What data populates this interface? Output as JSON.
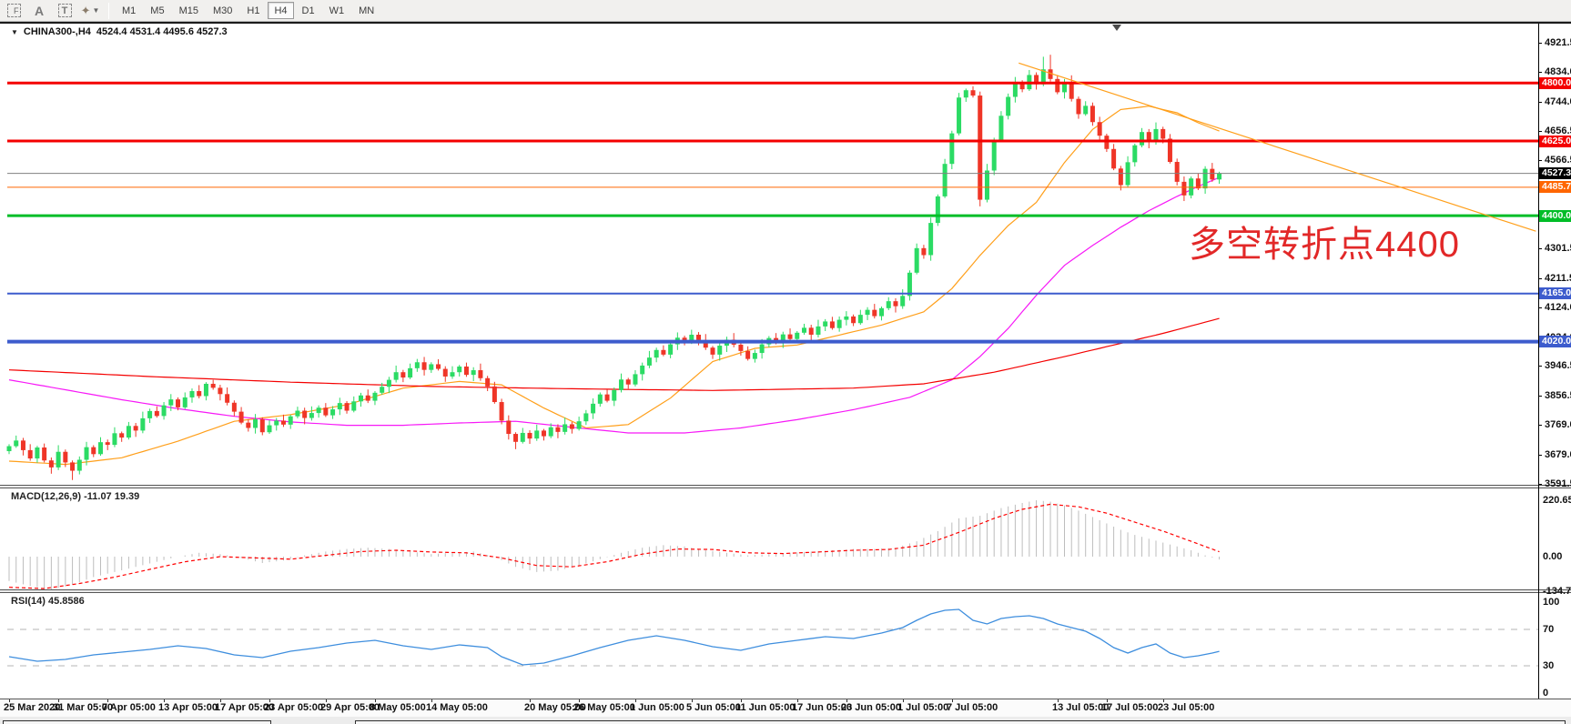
{
  "toolbar": {
    "tools": [
      {
        "name": "cursor-tool",
        "label": "F"
      },
      {
        "name": "text-a-tool",
        "label": "A"
      },
      {
        "name": "text-box-tool",
        "label": "T"
      },
      {
        "name": "shapes-tool",
        "label": "✦"
      }
    ],
    "timeframes": [
      "M1",
      "M5",
      "M15",
      "M30",
      "H1",
      "H4",
      "D1",
      "W1",
      "MN"
    ],
    "active_timeframe": "H4"
  },
  "window": {
    "title": "CHINA300-,H4",
    "ohlc_text": "4524.4 4531.4 4495.6 4527.3"
  },
  "annotation": {
    "text": "多空转折点4400",
    "color": "#e22828"
  },
  "price_axis": {
    "ticks": [
      4921.5,
      4834.0,
      4744.0,
      4656.5,
      4566.5,
      4477.0,
      4389.5,
      4301.5,
      4211.5,
      4124.0,
      4034.0,
      3946.5,
      3856.5,
      3769.0,
      3679.0,
      3591.5
    ],
    "badges": [
      {
        "text": "4800.0",
        "price": 4800.0,
        "color": "#f40000"
      },
      {
        "text": "4625.0",
        "price": 4625.0,
        "color": "#f40000"
      },
      {
        "text": "4527.3",
        "price": 4527.3,
        "color": "#000000"
      },
      {
        "text": "4485.7",
        "price": 4485.7,
        "color": "#ff6600"
      },
      {
        "text": "4400.0",
        "price": 4400.0,
        "color": "#00bd27"
      },
      {
        "text": "4165.0",
        "price": 4165.0,
        "color": "#3d5ccd"
      },
      {
        "text": "4020.0",
        "price": 4020.0,
        "color": "#3d5ccd"
      }
    ]
  },
  "chart_data": {
    "type": "candlestick",
    "symbol": "CHINA300-",
    "timeframe": "H4",
    "ohlc_display": {
      "open": 4524.4,
      "high": 4531.4,
      "low": 4495.6,
      "close": 4527.3
    },
    "price_axis_range": [
      3591.5,
      4921.5
    ],
    "open0": 3690,
    "closes": [
      3705,
      3722,
      3693,
      3668,
      3701,
      3662,
      3641,
      3688,
      3656,
      3631,
      3664,
      3702,
      3681,
      3717,
      3709,
      3744,
      3731,
      3766,
      3752,
      3789,
      3811,
      3796,
      3828,
      3846,
      3822,
      3852,
      3871,
      3856,
      3893,
      3881,
      3862,
      3836,
      3809,
      3776,
      3760,
      3786,
      3747,
      3768,
      3782,
      3770,
      3795,
      3812,
      3790,
      3805,
      3821,
      3798,
      3816,
      3835,
      3812,
      3840,
      3858,
      3842,
      3866,
      3884,
      3905,
      3928,
      3912,
      3940,
      3958,
      3935,
      3952,
      3938,
      3915,
      3928,
      3945,
      3920,
      3934,
      3910,
      3885,
      3838,
      3782,
      3742,
      3718,
      3745,
      3728,
      3752,
      3735,
      3762,
      3748,
      3771,
      3757,
      3780,
      3804,
      3833,
      3861,
      3842,
      3874,
      3906,
      3891,
      3922,
      3948,
      3972,
      3995,
      3981,
      4012,
      4032,
      4018,
      4041,
      4025,
      4002,
      3981,
      4008,
      4026,
      4011,
      3992,
      3968,
      3986,
      4012,
      4031,
      4017,
      4042,
      4028,
      4047,
      4062,
      4041,
      4066,
      4081,
      4061,
      4086,
      4096,
      4076,
      4101,
      4116,
      4097,
      4121,
      4142,
      4127,
      4158,
      4228,
      4302,
      4281,
      4378,
      4458,
      4556,
      4648,
      4756,
      4778,
      4762,
      4448,
      4536,
      4628,
      4701,
      4758,
      4802,
      4781,
      4824,
      4796,
      4841,
      4812,
      4772,
      4803,
      4752,
      4706,
      4731,
      4682,
      4641,
      4601,
      4542,
      4492,
      4561,
      4612,
      4652,
      4622,
      4661,
      4632,
      4562,
      4502,
      4461,
      4512,
      4482,
      4541,
      4509,
      4527.3
    ],
    "wick_up": [
      6,
      15,
      8,
      18,
      5,
      12,
      9,
      20,
      7,
      14,
      10,
      16
    ],
    "wick_dn": [
      9,
      5,
      16,
      7,
      13,
      6,
      19,
      8,
      14,
      5,
      11,
      17
    ],
    "wick_overrides": {
      "9": [
        6,
        28
      ],
      "72": [
        5,
        22
      ],
      "101": [
        8,
        18
      ],
      "135": [
        14,
        6
      ],
      "138": [
        12,
        20
      ],
      "147": [
        38,
        6
      ],
      "148": [
        44,
        8
      ]
    },
    "colors": {
      "up": "#2bdb64",
      "down": "#ef3527",
      "macd_hist": "#bdbdbd",
      "macd_signal": "#ff0000",
      "rsi": "#3e8ede"
    },
    "levels": [
      {
        "price": 4800,
        "color": "#f40000",
        "width": 3
      },
      {
        "price": 4625,
        "color": "#f40000",
        "width": 3
      },
      {
        "price": 4527.3,
        "color": "#808080",
        "width": 1
      },
      {
        "price": 4485.7,
        "color": "#ff6600",
        "width": 1
      },
      {
        "price": 4400,
        "color": "#00bd27",
        "width": 3
      },
      {
        "price": 4165,
        "color": "#3d5ccd",
        "width": 2
      },
      {
        "price": 4020,
        "color": "#3d5ccd",
        "width": 4
      }
    ],
    "moving_averages": [
      {
        "name": "ma-fast-orange",
        "color": "#ff9f1a",
        "points": [
          [
            0,
            3660
          ],
          [
            8,
            3650
          ],
          [
            16,
            3670
          ],
          [
            24,
            3720
          ],
          [
            32,
            3780
          ],
          [
            40,
            3800
          ],
          [
            48,
            3830
          ],
          [
            56,
            3880
          ],
          [
            64,
            3900
          ],
          [
            70,
            3890
          ],
          [
            76,
            3820
          ],
          [
            82,
            3760
          ],
          [
            88,
            3770
          ],
          [
            94,
            3850
          ],
          [
            100,
            3960
          ],
          [
            106,
            4000
          ],
          [
            112,
            4010
          ],
          [
            118,
            4040
          ],
          [
            124,
            4070
          ],
          [
            130,
            4110
          ],
          [
            134,
            4180
          ],
          [
            138,
            4280
          ],
          [
            142,
            4370
          ],
          [
            146,
            4440
          ],
          [
            150,
            4560
          ],
          [
            154,
            4660
          ],
          [
            158,
            4720
          ],
          [
            162,
            4730
          ],
          [
            166,
            4710
          ],
          [
            169,
            4680
          ],
          [
            172,
            4655
          ]
        ]
      },
      {
        "name": "ma-mid-magenta",
        "color": "#f718f7",
        "points": [
          [
            0,
            3905
          ],
          [
            8,
            3875
          ],
          [
            16,
            3845
          ],
          [
            24,
            3818
          ],
          [
            32,
            3795
          ],
          [
            40,
            3778
          ],
          [
            48,
            3768
          ],
          [
            56,
            3768
          ],
          [
            64,
            3775
          ],
          [
            72,
            3780
          ],
          [
            80,
            3762
          ],
          [
            88,
            3745
          ],
          [
            96,
            3745
          ],
          [
            104,
            3760
          ],
          [
            112,
            3785
          ],
          [
            120,
            3815
          ],
          [
            128,
            3852
          ],
          [
            134,
            3905
          ],
          [
            138,
            3975
          ],
          [
            142,
            4060
          ],
          [
            146,
            4160
          ],
          [
            150,
            4250
          ],
          [
            154,
            4310
          ],
          [
            158,
            4365
          ],
          [
            162,
            4415
          ],
          [
            166,
            4458
          ],
          [
            169,
            4488
          ],
          [
            172,
            4515
          ]
        ]
      },
      {
        "name": "ma-slow-red",
        "color": "#f40000",
        "points": [
          [
            0,
            3935
          ],
          [
            20,
            3915
          ],
          [
            40,
            3898
          ],
          [
            60,
            3885
          ],
          [
            80,
            3878
          ],
          [
            100,
            3873
          ],
          [
            120,
            3880
          ],
          [
            130,
            3893
          ],
          [
            140,
            3928
          ],
          [
            150,
            3975
          ],
          [
            158,
            4015
          ],
          [
            164,
            4045
          ],
          [
            172,
            4090
          ]
        ]
      }
    ],
    "trendline": {
      "from": [
        143.5,
        4860
      ],
      "to": [
        217,
        4353
      ],
      "color": "#ff9f1a"
    },
    "x_dates": [
      [
        "25 Mar 2020",
        0
      ],
      [
        "31 Mar 05:00",
        7
      ],
      [
        "7 Apr 05:00",
        14
      ],
      [
        "13 Apr 05:00",
        22
      ],
      [
        "17 Apr 05:00",
        30
      ],
      [
        "23 Apr 05:00",
        37
      ],
      [
        "29 Apr 05:00",
        45
      ],
      [
        "8 May 05:00",
        52
      ],
      [
        "14 May 05:00",
        60
      ],
      [
        "20 May 05:00",
        74
      ],
      [
        "26 May 05:00",
        81
      ],
      [
        "1 Jun 05:00",
        89
      ],
      [
        "5 Jun 05:00",
        97
      ],
      [
        "11 Jun 05:00",
        104
      ],
      [
        "17 Jun 05:00",
        112
      ],
      [
        "23 Jun 05:00",
        119
      ],
      [
        "1 Jul 05:00",
        127
      ],
      [
        "7 Jul 05:00",
        134
      ],
      [
        "13 Jul 05:00",
        149
      ],
      [
        "17 Jul 05:00",
        156
      ],
      [
        "23 Jul 05:00",
        164
      ]
    ],
    "macd": {
      "label": "MACD(12,26,9)",
      "values_text": "-11.07 19.39",
      "axis_labels": [
        "220.65",
        "0.00",
        "-134.76"
      ],
      "range": [
        -134.76,
        220.65
      ],
      "hist_anchors": [
        [
          0,
          -95
        ],
        [
          3,
          -115
        ],
        [
          6,
          -130
        ],
        [
          9,
          -110
        ],
        [
          12,
          -80
        ],
        [
          15,
          -60
        ],
        [
          18,
          -40
        ],
        [
          21,
          -20
        ],
        [
          24,
          0
        ],
        [
          27,
          15
        ],
        [
          30,
          10
        ],
        [
          33,
          -5
        ],
        [
          36,
          -25
        ],
        [
          39,
          -15
        ],
        [
          42,
          5
        ],
        [
          45,
          20
        ],
        [
          48,
          30
        ],
        [
          51,
          35
        ],
        [
          54,
          30
        ],
        [
          57,
          20
        ],
        [
          60,
          10
        ],
        [
          63,
          15
        ],
        [
          66,
          20
        ],
        [
          69,
          0
        ],
        [
          72,
          -40
        ],
        [
          75,
          -60
        ],
        [
          78,
          -55
        ],
        [
          81,
          -35
        ],
        [
          84,
          -10
        ],
        [
          87,
          15
        ],
        [
          90,
          35
        ],
        [
          93,
          45
        ],
        [
          96,
          40
        ],
        [
          99,
          25
        ],
        [
          102,
          15
        ],
        [
          105,
          5
        ],
        [
          108,
          10
        ],
        [
          111,
          15
        ],
        [
          114,
          20
        ],
        [
          117,
          25
        ],
        [
          120,
          30
        ],
        [
          123,
          30
        ],
        [
          126,
          35
        ],
        [
          129,
          60
        ],
        [
          132,
          100
        ],
        [
          135,
          150
        ],
        [
          138,
          160
        ],
        [
          141,
          190
        ],
        [
          144,
          210
        ],
        [
          146,
          220.65
        ],
        [
          148,
          215
        ],
        [
          150,
          200
        ],
        [
          152,
          180
        ],
        [
          154,
          155
        ],
        [
          156,
          130
        ],
        [
          158,
          105
        ],
        [
          160,
          85
        ],
        [
          162,
          70
        ],
        [
          164,
          55
        ],
        [
          166,
          40
        ],
        [
          168,
          25
        ],
        [
          170,
          5
        ],
        [
          172,
          -11.07
        ]
      ],
      "signal_anchors": [
        [
          0,
          -120
        ],
        [
          5,
          -125
        ],
        [
          10,
          -105
        ],
        [
          15,
          -80
        ],
        [
          20,
          -50
        ],
        [
          25,
          -20
        ],
        [
          30,
          0
        ],
        [
          35,
          -5
        ],
        [
          40,
          -10
        ],
        [
          45,
          5
        ],
        [
          50,
          20
        ],
        [
          55,
          25
        ],
        [
          60,
          18
        ],
        [
          65,
          15
        ],
        [
          70,
          -5
        ],
        [
          75,
          -35
        ],
        [
          80,
          -40
        ],
        [
          85,
          -20
        ],
        [
          90,
          10
        ],
        [
          95,
          30
        ],
        [
          100,
          28
        ],
        [
          105,
          15
        ],
        [
          110,
          12
        ],
        [
          115,
          18
        ],
        [
          120,
          25
        ],
        [
          125,
          28
        ],
        [
          130,
          45
        ],
        [
          135,
          95
        ],
        [
          140,
          150
        ],
        [
          144,
          185
        ],
        [
          148,
          205
        ],
        [
          152,
          195
        ],
        [
          156,
          170
        ],
        [
          160,
          135
        ],
        [
          164,
          100
        ],
        [
          168,
          60
        ],
        [
          172,
          19.39
        ]
      ]
    },
    "rsi": {
      "label": "RSI(14)",
      "value_text": "45.8586",
      "axis_labels": [
        "100",
        "70",
        "30",
        "0"
      ],
      "guide_levels": [
        70,
        30
      ],
      "anchors": [
        [
          0,
          40
        ],
        [
          4,
          35
        ],
        [
          8,
          37
        ],
        [
          12,
          42
        ],
        [
          16,
          45
        ],
        [
          20,
          48
        ],
        [
          24,
          52
        ],
        [
          28,
          49
        ],
        [
          32,
          42
        ],
        [
          36,
          39
        ],
        [
          40,
          46
        ],
        [
          44,
          50
        ],
        [
          48,
          55
        ],
        [
          52,
          58
        ],
        [
          56,
          52
        ],
        [
          60,
          48
        ],
        [
          64,
          53
        ],
        [
          68,
          50
        ],
        [
          70,
          40
        ],
        [
          73,
          31
        ],
        [
          76,
          33
        ],
        [
          80,
          41
        ],
        [
          84,
          50
        ],
        [
          88,
          58
        ],
        [
          92,
          63
        ],
        [
          96,
          58
        ],
        [
          100,
          51
        ],
        [
          104,
          47
        ],
        [
          108,
          54
        ],
        [
          112,
          58
        ],
        [
          116,
          62
        ],
        [
          120,
          60
        ],
        [
          124,
          66
        ],
        [
          127,
          72
        ],
        [
          129,
          80
        ],
        [
          131,
          87
        ],
        [
          133,
          91
        ],
        [
          135,
          92
        ],
        [
          137,
          80
        ],
        [
          139,
          76
        ],
        [
          141,
          82
        ],
        [
          143,
          84
        ],
        [
          145,
          85
        ],
        [
          147,
          82
        ],
        [
          149,
          76
        ],
        [
          151,
          72
        ],
        [
          153,
          68
        ],
        [
          155,
          60
        ],
        [
          157,
          50
        ],
        [
          159,
          44
        ],
        [
          161,
          50
        ],
        [
          163,
          54
        ],
        [
          165,
          44
        ],
        [
          167,
          39
        ],
        [
          169,
          41
        ],
        [
          171,
          44
        ],
        [
          172,
          45.8586
        ]
      ]
    }
  }
}
